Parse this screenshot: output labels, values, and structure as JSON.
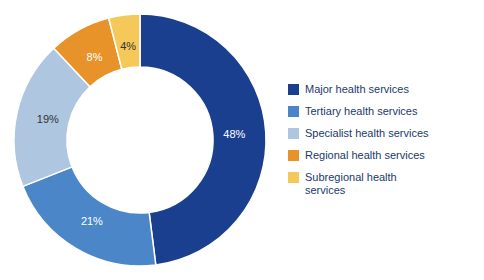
{
  "chart_data": {
    "type": "pie",
    "categories": [
      "Major health services",
      "Tertiary health services",
      "Specialist health services",
      "Regional health services",
      "Subregional health\nservices"
    ],
    "values": [
      48,
      21,
      19,
      8,
      4
    ],
    "value_labels": [
      "48%",
      "21%",
      "19%",
      "8%",
      "4%"
    ],
    "colors": [
      "#1a3f8f",
      "#4a86c8",
      "#aec6e0",
      "#e8922a",
      "#f5c85a"
    ],
    "data_labels": true,
    "legend": "right"
  }
}
